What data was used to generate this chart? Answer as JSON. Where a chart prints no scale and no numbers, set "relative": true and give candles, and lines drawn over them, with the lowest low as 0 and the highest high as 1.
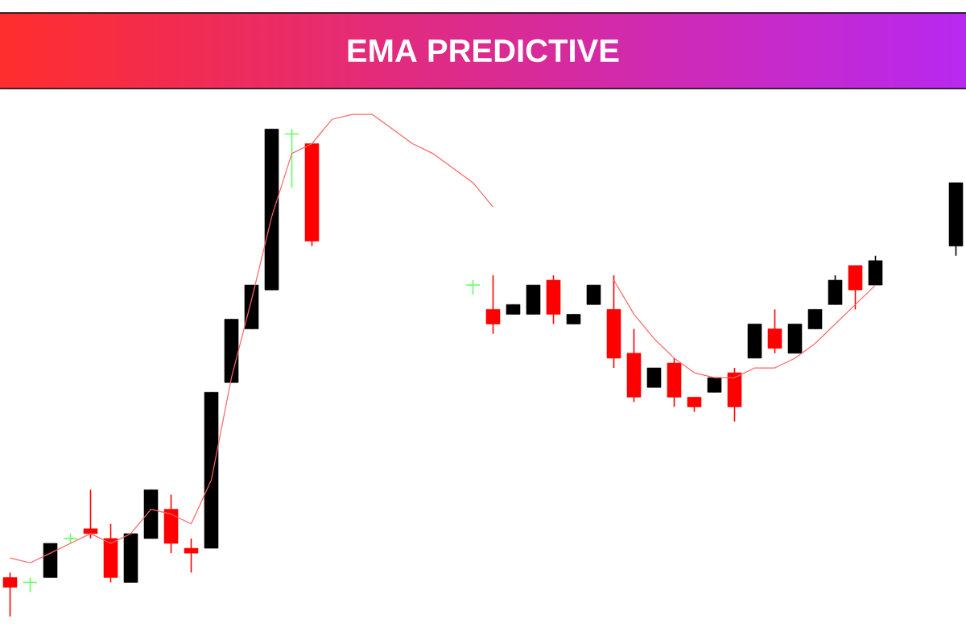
{
  "chart_data": {
    "type": "candlestick",
    "title": "EMA PREDICTIVE",
    "relative": true,
    "categories": [
      null,
      null,
      null,
      null,
      null,
      null,
      null,
      null,
      null,
      null,
      null,
      null,
      null,
      null,
      null,
      null,
      null,
      null,
      null,
      null,
      null,
      null,
      null,
      null,
      null,
      null,
      null,
      null,
      null,
      null,
      null,
      null,
      null,
      null,
      null,
      null,
      null,
      null,
      null,
      null,
      null,
      null,
      null,
      null,
      null,
      null,
      null,
      null
    ],
    "ohlc": [
      [
        0.08,
        0.09,
        0,
        0.06
      ],
      [
        0.07,
        0.08,
        0.05,
        0.07
      ],
      [
        0.08,
        0.15,
        0.08,
        0.15
      ],
      [
        0.16,
        0.17,
        0.15,
        0.16
      ],
      [
        0.18,
        0.26,
        0.16,
        0.17
      ],
      [
        0.16,
        0.19,
        0.07,
        0.08
      ],
      [
        0.07,
        0.17,
        0.07,
        0.17
      ],
      [
        0.16,
        0.26,
        0.16,
        0.26
      ],
      [
        0.22,
        0.25,
        0.13,
        0.15
      ],
      [
        0.14,
        0.16,
        0.09,
        0.13
      ],
      [
        0.14,
        0.46,
        0.14,
        0.46
      ],
      [
        0.48,
        0.61,
        0.48,
        0.61
      ],
      [
        0.59,
        0.68,
        0.59,
        0.68
      ],
      [
        0.67,
        1,
        0.67,
        1
      ],
      [
        0.99,
        1,
        0.88,
        0.99
      ],
      [
        0.97,
        0.97,
        0.76,
        0.77
      ],
      null,
      null,
      null,
      null,
      null,
      null,
      null,
      [
        0.68,
        0.69,
        0.66,
        0.68
      ],
      [
        0.63,
        0.7,
        0.58,
        0.6
      ],
      [
        0.62,
        0.64,
        0.62,
        0.64
      ],
      [
        0.62,
        0.68,
        0.62,
        0.68
      ],
      [
        0.69,
        0.7,
        0.6,
        0.62
      ],
      [
        0.6,
        0.62,
        0.6,
        0.62
      ],
      [
        0.64,
        0.68,
        0.64,
        0.68
      ],
      [
        0.63,
        0.7,
        0.51,
        0.53
      ],
      [
        0.54,
        0.59,
        0.44,
        0.45
      ],
      [
        0.47,
        0.51,
        0.47,
        0.51
      ],
      [
        0.52,
        0.53,
        0.43,
        0.45
      ],
      [
        0.45,
        0.45,
        0.42,
        0.43
      ],
      [
        0.46,
        0.49,
        0.46,
        0.49
      ],
      [
        0.5,
        0.51,
        0.4,
        0.43
      ],
      [
        0.53,
        0.6,
        0.53,
        0.6
      ],
      [
        0.59,
        0.63,
        0.54,
        0.55
      ],
      [
        0.54,
        0.6,
        0.54,
        0.6
      ],
      [
        0.59,
        0.63,
        0.59,
        0.63
      ],
      [
        0.64,
        0.7,
        0.64,
        0.69
      ],
      [
        0.72,
        0.72,
        0.63,
        0.67
      ],
      [
        0.68,
        0.74,
        0.68,
        0.73
      ],
      null,
      null,
      null,
      [
        0.76,
        0.89,
        0.74,
        0.89
      ]
    ],
    "colors": [
      "#ff0000",
      "#66ff66",
      "#000000",
      "#66ff66",
      "#ff0000",
      "#ff0000",
      "#000000",
      "#000000",
      "#ff0000",
      "#ff0000",
      "#000000",
      "#000000",
      "#000000",
      "#000000",
      "#66ff66",
      "#ff0000",
      null,
      null,
      null,
      null,
      null,
      null,
      null,
      "#66ff66",
      "#ff0000",
      "#000000",
      "#000000",
      "#ff0000",
      "#000000",
      "#000000",
      "#ff0000",
      "#ff0000",
      "#000000",
      "#ff0000",
      "#ff0000",
      "#000000",
      "#ff0000",
      "#000000",
      "#ff0000",
      "#000000",
      "#000000",
      "#000000",
      "#ff0000",
      "#000000",
      null,
      null,
      null,
      "#000000"
    ],
    "series": [
      {
        "type": "line",
        "color": "#ff6464",
        "values": [
          0.12,
          0.11,
          0.13,
          0.15,
          0.17,
          0.15,
          0.17,
          0.22,
          0.21,
          0.19,
          0.28,
          0.49,
          0.65,
          0.82,
          0.95,
          0.97,
          1.02,
          1.03,
          1.03,
          1.0,
          0.97,
          0.95,
          0.92,
          0.89,
          0.84,
          null,
          null,
          null,
          null,
          null,
          0.69,
          0.62,
          0.57,
          0.53,
          0.5,
          0.49,
          0.49,
          0.51,
          0.51,
          0.53,
          0.56,
          0.6,
          0.64,
          0.68,
          null,
          null,
          null,
          null
        ]
      }
    ]
  }
}
